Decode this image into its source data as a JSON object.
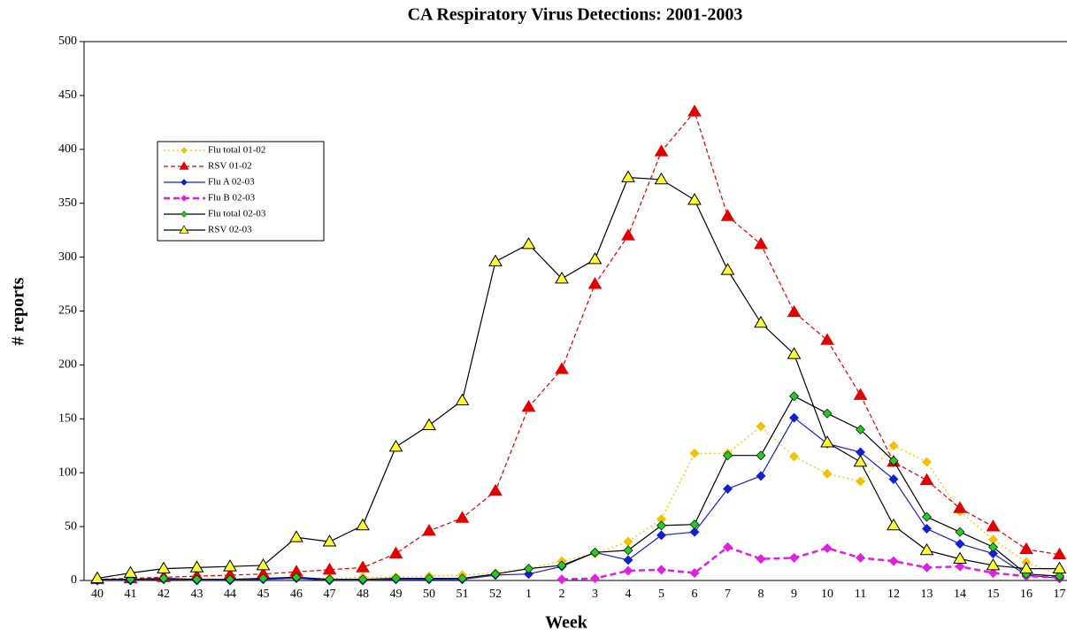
{
  "chart_data": {
    "type": "line",
    "title": "CA Respiratory Virus Detections: 2001-2003",
    "x_label": "Week",
    "y_label": "# reports",
    "categories": [
      "40",
      "41",
      "42",
      "43",
      "44",
      "45",
      "46",
      "47",
      "48",
      "49",
      "50",
      "51",
      "52",
      "1",
      "2",
      "3",
      "4",
      "5",
      "6",
      "7",
      "8",
      "9",
      "10",
      "11",
      "12",
      "13",
      "14",
      "15",
      "16",
      "17"
    ],
    "ylim": [
      0,
      500
    ],
    "yticks": [
      0,
      50,
      100,
      150,
      200,
      250,
      300,
      350,
      400,
      450,
      500
    ],
    "grid": false,
    "legend": "upper-left",
    "series": [
      {
        "name": "Flu total 01-02",
        "color": "#f2c200",
        "line_color": "#f2c200",
        "line_style": "dotted",
        "marker": "diamond",
        "values": [
          1,
          1,
          1,
          1,
          1,
          2,
          2,
          2,
          3,
          3,
          4,
          5,
          7,
          11,
          18,
          25,
          36,
          57,
          118,
          118,
          143,
          115,
          99,
          92,
          125,
          110,
          64,
          38,
          17,
          5
        ]
      },
      {
        "name": "RSV 01-02",
        "color": "#e00000",
        "line_color": "#e00000",
        "line_style": "dashed",
        "marker": "triangle",
        "values": [
          1,
          2,
          3,
          4,
          5,
          6,
          8,
          10,
          12,
          25,
          46,
          58,
          83,
          161,
          196,
          275,
          320,
          398,
          435,
          338,
          312,
          249,
          223,
          172,
          110,
          93,
          67,
          50,
          29,
          24
        ]
      },
      {
        "name": "Flu A 02-03",
        "color": "#1020d0",
        "line_color": "#1020d0",
        "line_style": "solid",
        "marker": "diamond",
        "values": [
          0,
          0,
          1,
          0,
          0,
          1,
          2,
          0,
          0,
          1,
          1,
          1,
          5,
          6,
          13,
          26,
          19,
          42,
          45,
          85,
          97,
          151,
          127,
          119,
          94,
          48,
          34,
          25,
          5,
          2
        ]
      },
      {
        "name": "Flu B 02-03",
        "color": "#e020e0",
        "line_color": "#e020e0",
        "line_style": "bold-dashed",
        "marker": "diamond",
        "values": [
          null,
          null,
          null,
          null,
          null,
          null,
          null,
          null,
          null,
          null,
          null,
          null,
          null,
          null,
          1,
          2,
          9,
          10,
          7,
          31,
          20,
          21,
          30,
          21,
          18,
          12,
          13,
          7,
          4,
          3
        ]
      },
      {
        "name": "Flu total 02-03",
        "color": "#22cc22",
        "line_color": "#000000",
        "line_style": "solid",
        "marker": "diamond",
        "values": [
          1,
          1,
          2,
          1,
          1,
          2,
          3,
          1,
          1,
          2,
          2,
          2,
          6,
          11,
          14,
          26,
          28,
          51,
          52,
          116,
          116,
          171,
          155,
          140,
          111,
          59,
          45,
          31,
          6,
          4
        ]
      },
      {
        "name": "RSV 02-03",
        "color": "#ffff33",
        "line_color": "#000000",
        "line_style": "solid",
        "marker": "triangle",
        "values": [
          2,
          7,
          11,
          12,
          13,
          14,
          40,
          36,
          51,
          124,
          144,
          167,
          296,
          312,
          280,
          298,
          374,
          372,
          353,
          288,
          239,
          210,
          128,
          110,
          51,
          28,
          20,
          14,
          11,
          11
        ]
      }
    ]
  }
}
